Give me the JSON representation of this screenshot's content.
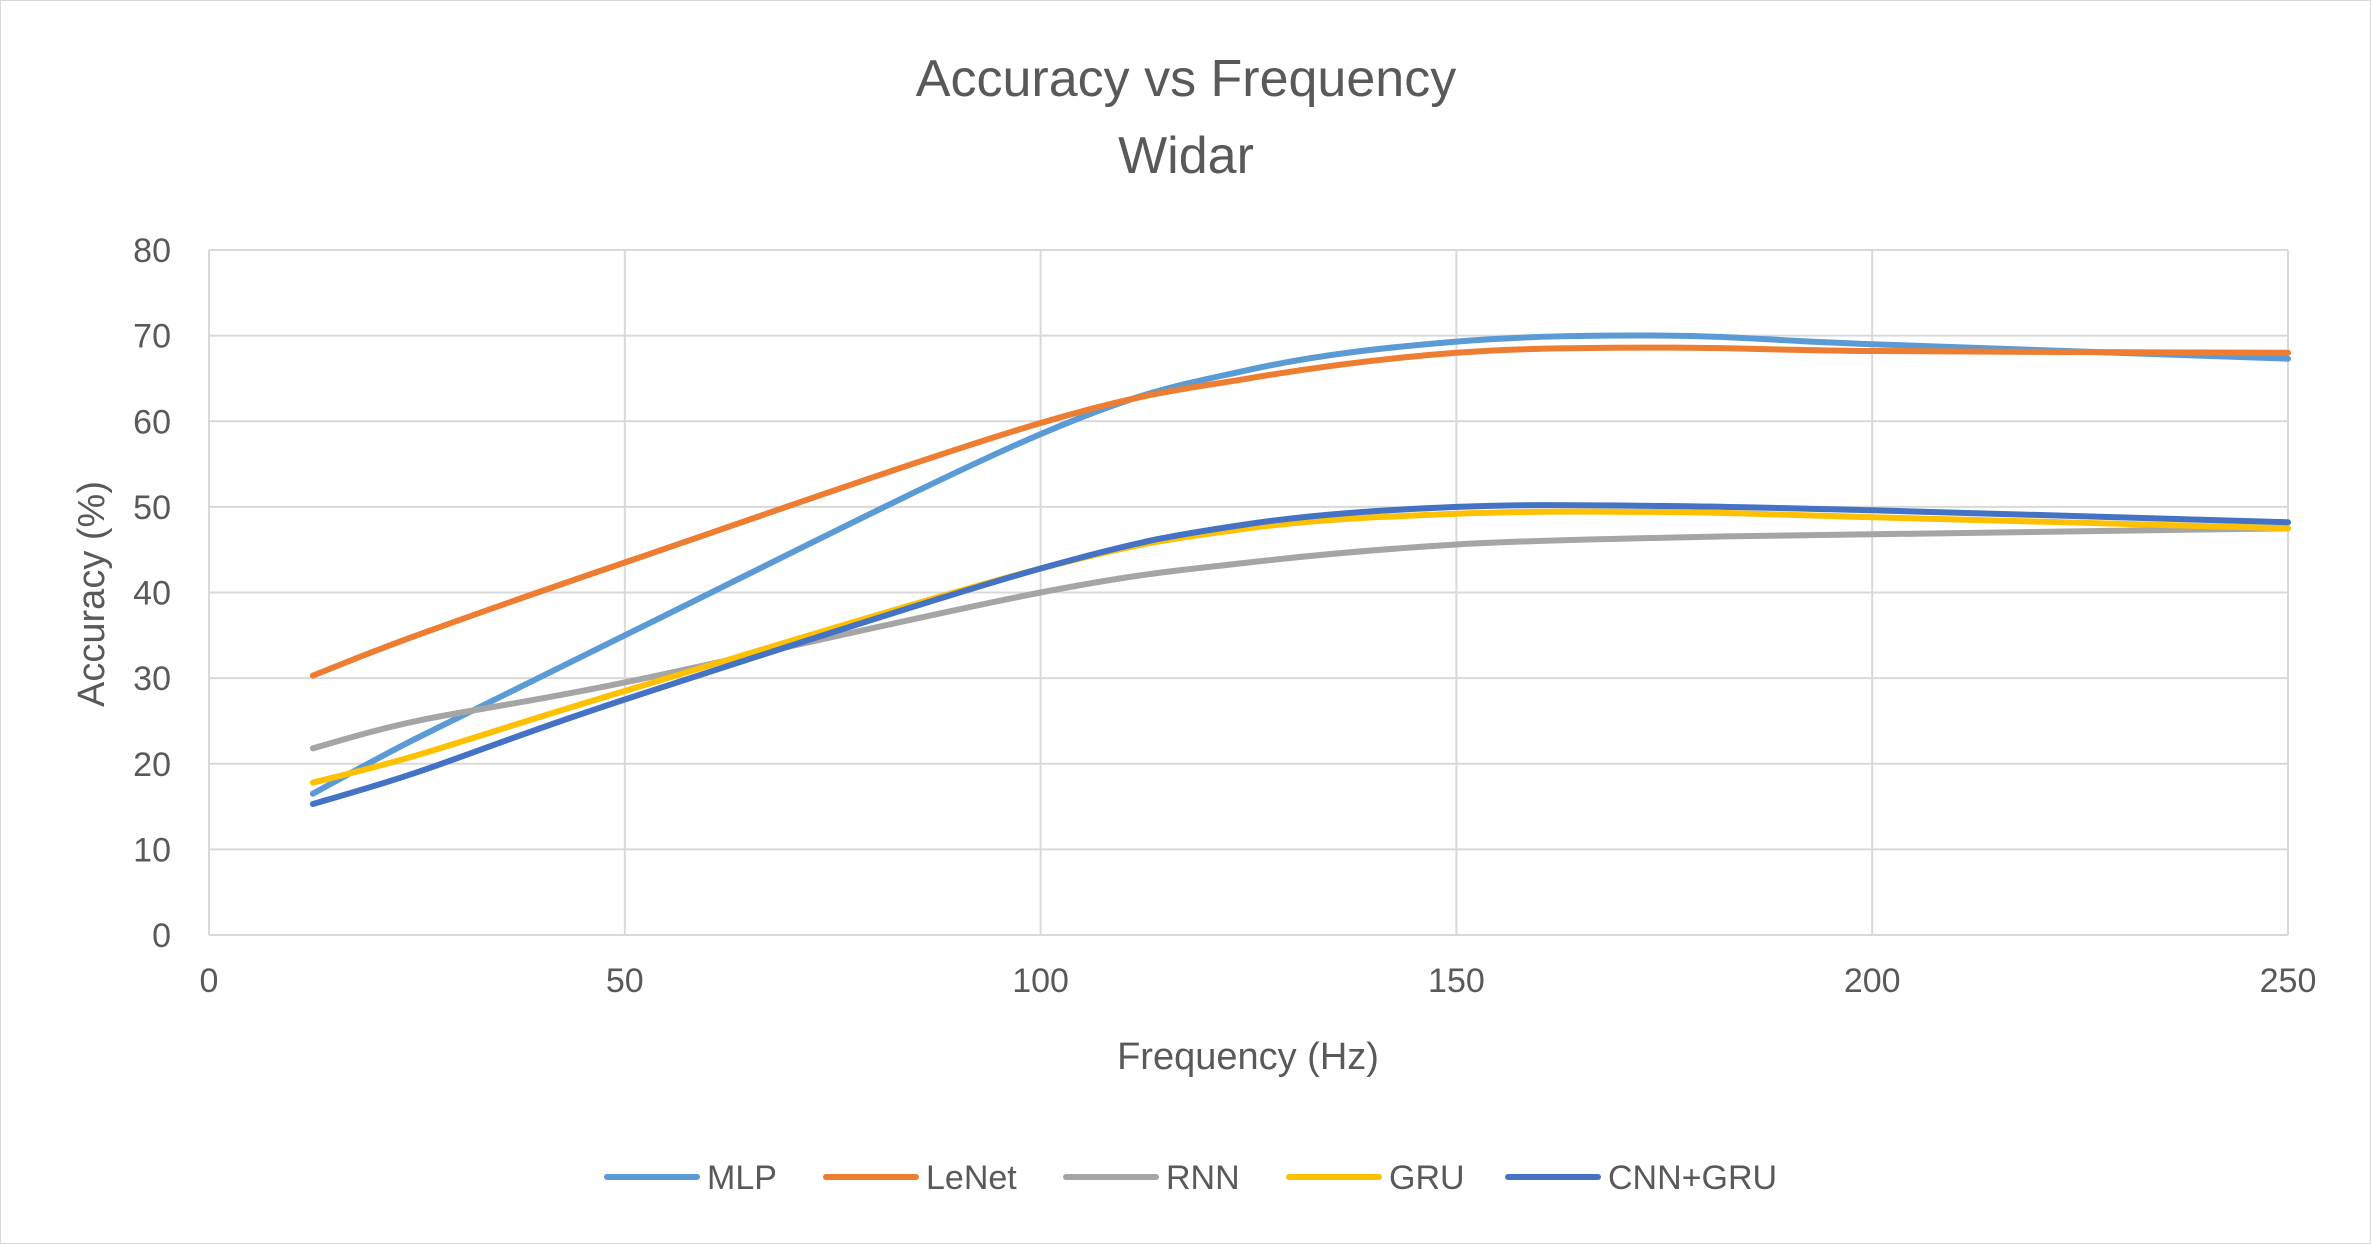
{
  "chart_data": {
    "type": "line",
    "title": "Accuracy vs Frequency",
    "subtitle": "Widar",
    "xlabel": "Frequency (Hz)",
    "ylabel": "Accuracy (%)",
    "xlim": [
      0,
      250
    ],
    "ylim": [
      0,
      80
    ],
    "xticks": [
      0,
      50,
      100,
      150,
      200,
      250
    ],
    "yticks": [
      0,
      10,
      20,
      30,
      40,
      50,
      60,
      70,
      80
    ],
    "grid": true,
    "legend_position": "bottom",
    "x": [
      12.5,
      25,
      50,
      100,
      125,
      150,
      175,
      200,
      250
    ],
    "series": [
      {
        "name": "MLP",
        "color": "#5B9BD5",
        "values": [
          16.5,
          23,
          35,
          58.5,
          66,
          69.3,
          70,
          69,
          67.3
        ]
      },
      {
        "name": "LeNet",
        "color": "#ED7D31",
        "values": [
          30.3,
          35,
          43.5,
          59.8,
          65,
          68,
          68.6,
          68.2,
          68
        ]
      },
      {
        "name": "RNN",
        "color": "#A5A5A5",
        "values": [
          21.8,
          25,
          29.5,
          40,
          43.5,
          45.6,
          46.4,
          46.8,
          47.5
        ]
      },
      {
        "name": "GRU",
        "color": "#FFC000",
        "values": [
          17.8,
          21,
          28.5,
          42.8,
          47.5,
          49.2,
          49.4,
          48.8,
          47.5
        ]
      },
      {
        "name": "CNN+GRU",
        "color": "#4472C4",
        "values": [
          15.3,
          19,
          27.5,
          42.8,
          48,
          50,
          50.1,
          49.6,
          48.2
        ]
      }
    ]
  }
}
